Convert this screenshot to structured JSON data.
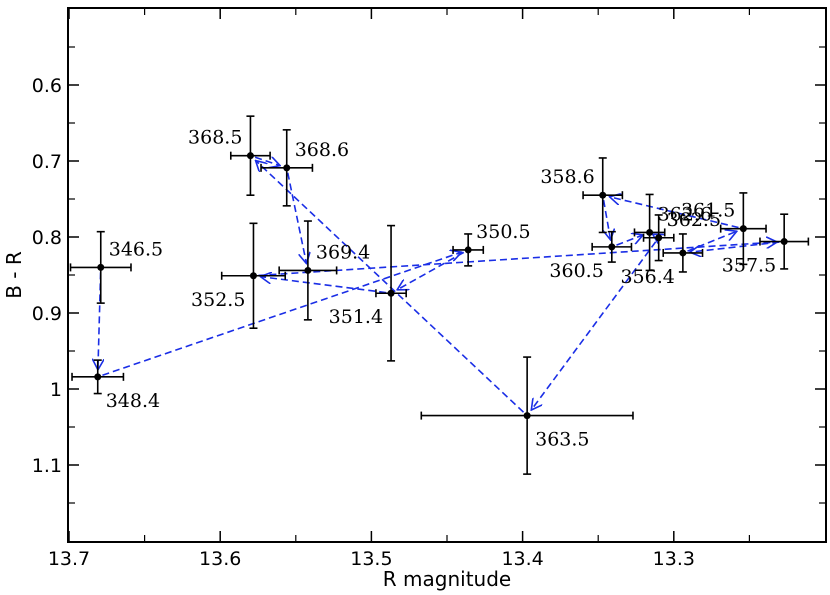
{
  "chart_data": {
    "type": "scatter",
    "title": "",
    "xlabel": "R magnitude",
    "ylabel": "B - R",
    "xlim": [
      13.7,
      13.2
    ],
    "ylim": [
      0.5,
      1.2
    ],
    "x_inverted": true,
    "y_inverted": true,
    "x_ticks": [
      "13.7",
      "13.6",
      "13.5",
      "13.4",
      "13.3"
    ],
    "x_tick_values": [
      13.7,
      13.6,
      13.5,
      13.4,
      13.3
    ],
    "y_ticks": [
      "0.6",
      "0.7",
      "0.8",
      "0.9",
      "1",
      "1.1"
    ],
    "y_tick_values": [
      0.6,
      0.7,
      0.8,
      0.9,
      1.0,
      1.1
    ],
    "grid": false,
    "colors": {
      "points": "#000000",
      "arrows": "#1a2ee6"
    },
    "points": [
      {
        "label": "346.5",
        "x": 13.679,
        "y": 0.84,
        "xerr": 0.02,
        "yerr": 0.047,
        "label_pos": "upper-right"
      },
      {
        "label": "348.4",
        "x": 13.681,
        "y": 0.984,
        "xerr": 0.017,
        "yerr": 0.022,
        "label_pos": "lower-right"
      },
      {
        "label": "352.5",
        "x": 13.578,
        "y": 0.851,
        "xerr": 0.021,
        "yerr": 0.069,
        "label_pos": "lower-left"
      },
      {
        "label": "369.4",
        "x": 13.542,
        "y": 0.844,
        "xerr": 0.019,
        "yerr": 0.065,
        "label_pos": "upper-right"
      },
      {
        "label": "351.4",
        "x": 13.487,
        "y": 0.874,
        "xerr": 0.01,
        "yerr": 0.089,
        "label_pos": "lower-left"
      },
      {
        "label": "350.5",
        "x": 13.436,
        "y": 0.817,
        "xerr": 0.01,
        "yerr": 0.021,
        "label_pos": "upper-right"
      },
      {
        "label": "368.5",
        "x": 13.58,
        "y": 0.693,
        "xerr": 0.013,
        "yerr": 0.052,
        "label_pos": "upper-left"
      },
      {
        "label": "368.6",
        "x": 13.556,
        "y": 0.709,
        "xerr": 0.017,
        "yerr": 0.05,
        "label_pos": "upper-right"
      },
      {
        "label": "363.5",
        "x": 13.397,
        "y": 1.035,
        "xerr": 0.07,
        "yerr": 0.077,
        "label_pos": "lower-right"
      },
      {
        "label": "358.6",
        "x": 13.347,
        "y": 0.745,
        "xerr": 0.013,
        "yerr": 0.049,
        "label_pos": "upper-left"
      },
      {
        "label": "360.5",
        "x": 13.341,
        "y": 0.813,
        "xerr": 0.013,
        "yerr": 0.02,
        "label_pos": "lower-left"
      },
      {
        "label": "362.6",
        "x": 13.316,
        "y": 0.794,
        "xerr": 0.01,
        "yerr": 0.05,
        "label_pos": "upper-right"
      },
      {
        "label": "362.5",
        "x": 13.31,
        "y": 0.801,
        "xerr": 0.01,
        "yerr": 0.03,
        "label_pos": "upper-right"
      },
      {
        "label": "356.4",
        "x": 13.294,
        "y": 0.821,
        "xerr": 0.013,
        "yerr": 0.025,
        "label_pos": "lower-left"
      },
      {
        "label": "361.5",
        "x": 13.254,
        "y": 0.789,
        "xerr": 0.015,
        "yerr": 0.047,
        "label_pos": "upper-left"
      },
      {
        "label": "357.5",
        "x": 13.227,
        "y": 0.806,
        "xerr": 0.016,
        "yerr": 0.036,
        "label_pos": "lower-left"
      }
    ],
    "arrows": [
      {
        "from": "346.5",
        "to": "348.4"
      },
      {
        "from": "348.4",
        "to": "350.5"
      },
      {
        "from": "350.5",
        "to": "351.4"
      },
      {
        "from": "351.4",
        "to": "352.5"
      },
      {
        "from": "352.5",
        "to": "357.5"
      },
      {
        "from": "357.5",
        "to": "356.4"
      },
      {
        "from": "356.4",
        "to": "361.5"
      },
      {
        "from": "361.5",
        "to": "358.6"
      },
      {
        "from": "358.6",
        "to": "360.5"
      },
      {
        "from": "360.5",
        "to": "362.6"
      },
      {
        "from": "362.6",
        "to": "362.5"
      },
      {
        "from": "362.5",
        "to": "363.5"
      },
      {
        "from": "363.5",
        "to": "368.5"
      },
      {
        "from": "368.5",
        "to": "368.6"
      },
      {
        "from": "368.6",
        "to": "369.4"
      }
    ]
  }
}
